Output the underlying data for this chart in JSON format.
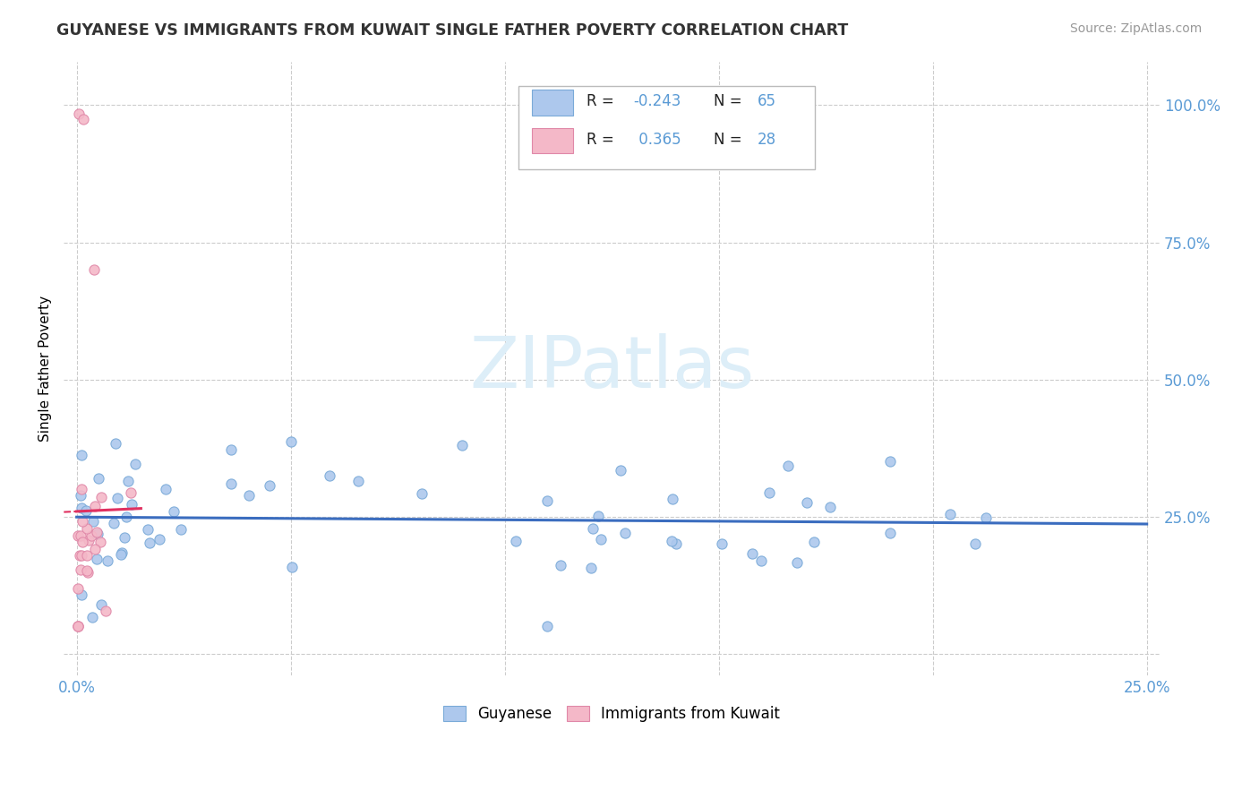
{
  "title": "GUYANESE VS IMMIGRANTS FROM KUWAIT SINGLE FATHER POVERTY CORRELATION CHART",
  "source": "Source: ZipAtlas.com",
  "ylabel": "Single Father Poverty",
  "xlim": [
    0.0,
    0.25
  ],
  "ylim": [
    -0.04,
    1.08
  ],
  "blue_color": "#adc8ed",
  "blue_edge": "#7aaad8",
  "pink_color": "#f4b8c8",
  "pink_edge": "#e088a8",
  "trend_blue_color": "#3b6dbf",
  "trend_pink_color": "#e03060",
  "watermark_color": "#ddeef8",
  "grid_color": "#cccccc",
  "tick_color": "#5b9bd5",
  "title_color": "#333333",
  "source_color": "#999999"
}
